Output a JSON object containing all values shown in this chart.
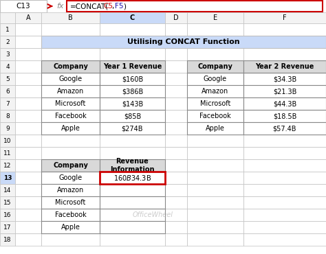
{
  "title": "Utilising CONCAT Function",
  "formula_bar_cell": "C13",
  "formula_bar_formula": "=CONCAT(C5,F5)",
  "col_labels": [
    "A",
    "B",
    "C",
    "D",
    "E",
    "F"
  ],
  "row_labels": [
    "1",
    "2",
    "3",
    "4",
    "5",
    "6",
    "7",
    "8",
    "9",
    "10",
    "11",
    "12",
    "13",
    "14",
    "15",
    "16",
    "17",
    "18"
  ],
  "table1_headers": [
    "Company",
    "Year 1 Revenue"
  ],
  "table1_data": [
    [
      "Google",
      "$160B"
    ],
    [
      "Amazon",
      "$386B"
    ],
    [
      "Microsoft",
      "$143B"
    ],
    [
      "Facebook",
      "$85B"
    ],
    [
      "Apple",
      "$274B"
    ]
  ],
  "table2_headers": [
    "Company",
    "Year 2 Revenue"
  ],
  "table2_data": [
    [
      "Google",
      "$34.3B"
    ],
    [
      "Amazon",
      "$21.3B"
    ],
    [
      "Microsoft",
      "$44.3B"
    ],
    [
      "Facebook",
      "$18.5B"
    ],
    [
      "Apple",
      "$57.4B"
    ]
  ],
  "table3_header1": "Company",
  "table3_header2": "Revenue\nInformation",
  "table3_data": [
    [
      "Google",
      "$160B$34.3B"
    ],
    [
      "Amazon",
      ""
    ],
    [
      "Microsoft",
      ""
    ],
    [
      "Facebook",
      ""
    ],
    [
      "Apple",
      ""
    ]
  ],
  "bg_color": "#ffffff",
  "title_bg": "#c9daf8",
  "table_header_bg": "#d9d9d9",
  "cell_bg": "#ffffff",
  "grid_color": "#c0c0c0",
  "row_header_bg": "#f3f3f3",
  "col_header_bg": "#f3f3f3",
  "col_c_header_bg": "#c9daf8",
  "row_13_header_bg": "#c9daf8",
  "highlight_border": "#cc0000",
  "formula_bar_border": "#cc0000",
  "watermark_color": "#aaaaaa"
}
